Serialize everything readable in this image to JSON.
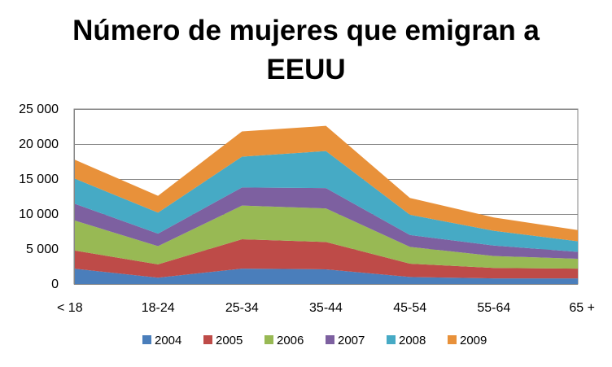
{
  "chart_data": {
    "type": "area",
    "stacked": true,
    "title_lines": [
      "Número de mujeres que emigran a",
      "EEUU"
    ],
    "categories": [
      "< 18",
      "18-24",
      "25-34",
      "35-44",
      "45-54",
      "55-64",
      "65 +"
    ],
    "ylim": [
      0,
      25000
    ],
    "yticks": [
      0,
      5000,
      10000,
      15000,
      20000,
      25000
    ],
    "ytick_labels": [
      "0",
      "5 000",
      "10 000",
      "15 000",
      "20 000",
      "25 000"
    ],
    "grid": true,
    "legend_position": "bottom",
    "series": [
      {
        "name": "2004",
        "color": "#4a7ebb",
        "values": [
          2200,
          900,
          2200,
          2100,
          1000,
          800,
          800
        ]
      },
      {
        "name": "2005",
        "color": "#be4b48",
        "values": [
          2600,
          1900,
          4200,
          3900,
          1900,
          1500,
          1400
        ]
      },
      {
        "name": "2006",
        "color": "#98b954",
        "values": [
          4300,
          2600,
          4800,
          4800,
          2400,
          1700,
          1400
        ]
      },
      {
        "name": "2007",
        "color": "#7d60a0",
        "values": [
          2400,
          1800,
          2600,
          2900,
          1700,
          1500,
          1000
        ]
      },
      {
        "name": "2008",
        "color": "#46aac5",
        "values": [
          3600,
          3000,
          4400,
          5300,
          2900,
          2100,
          1500
        ]
      },
      {
        "name": "2009",
        "color": "#e8913a",
        "values": [
          2700,
          2400,
          3600,
          3600,
          2400,
          1900,
          1600
        ]
      }
    ]
  }
}
